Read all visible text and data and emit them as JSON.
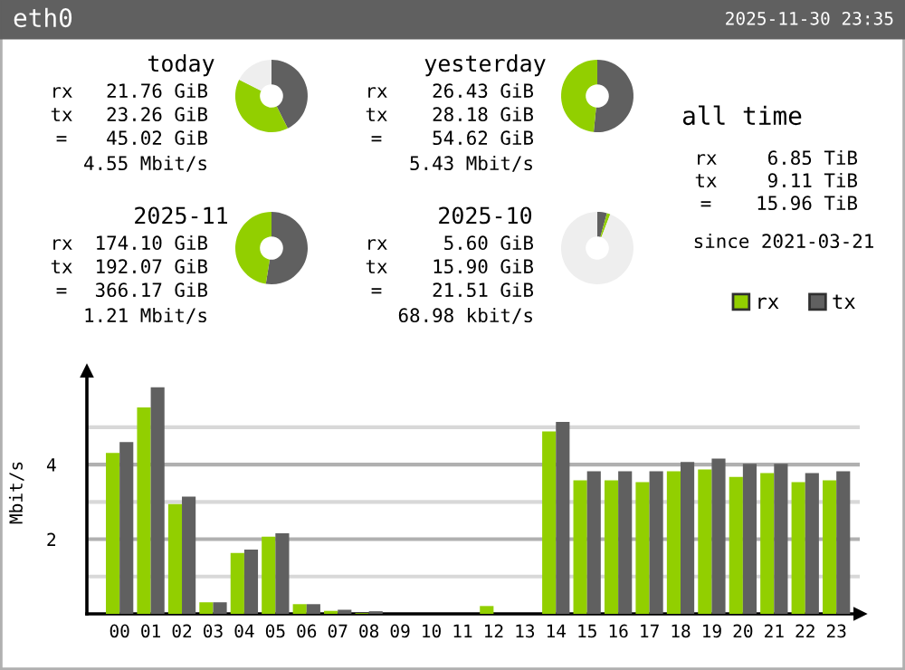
{
  "chart_data": [
    {
      "type": "donut",
      "title": "today",
      "categories": [
        null,
        null,
        null
      ],
      "values": [
        42.6,
        39.8,
        17.6
      ],
      "colors": [
        "#606060",
        "#92cf00",
        "#eeeeee"
      ],
      "annotations": [
        "rx",
        "21.76 GiB",
        "tx",
        "23.26 GiB",
        "=",
        "45.02 GiB",
        "4.55 Mbit/s"
      ]
    },
    {
      "type": "donut",
      "title": "yesterday",
      "categories": [
        null,
        null
      ],
      "values": [
        51.6,
        48.4
      ],
      "colors": [
        "#606060",
        "#92cf00"
      ],
      "annotations": [
        "rx",
        "26.43 GiB",
        "tx",
        "28.18 GiB",
        "=",
        "54.62 GiB",
        "5.43 Mbit/s"
      ]
    },
    {
      "type": "donut",
      "title": "2025-11",
      "categories": [
        null,
        null
      ],
      "values": [
        52.5,
        47.5
      ],
      "colors": [
        "#606060",
        "#92cf00"
      ],
      "annotations": [
        "rx",
        "174.10 GiB",
        "tx",
        "192.07 GiB",
        "=",
        "366.17 GiB",
        "1.21 Mbit/s"
      ]
    },
    {
      "type": "donut",
      "title": "2025-10",
      "categories": [
        null,
        null,
        null
      ],
      "values": [
        4.3,
        1.5,
        94.2
      ],
      "colors": [
        "#606060",
        "#92cf00",
        "#eeeeee"
      ],
      "annotations": [
        "rx",
        "5.60 GiB",
        "tx",
        "15.90 GiB",
        "=",
        "21.51 GiB",
        "68.98 kbit/s"
      ]
    },
    {
      "type": "other",
      "title": "all time",
      "annotations": [
        "rx",
        "6.85 TiB",
        "tx",
        "9.11 TiB",
        "=",
        "15.96 TiB",
        "since 2021-03-21"
      ]
    },
    {
      "type": "bar",
      "title": "eth0",
      "subtitle": "2025-11-30 23:35",
      "ylabel": "Mbit/s",
      "categories": [
        "00",
        "01",
        "02",
        "03",
        "04",
        "05",
        "06",
        "07",
        "08",
        "09",
        "10",
        "11",
        "12",
        "13",
        "14",
        "15",
        "16",
        "17",
        "18",
        "19",
        "20",
        "21",
        "22",
        "23"
      ],
      "series": [
        {
          "name": "rx",
          "color": "#92cf00",
          "values": [
            4.31,
            5.53,
            2.94,
            0.31,
            1.63,
            2.07,
            0.26,
            0.08,
            0.02,
            0,
            0,
            0,
            0.21,
            0,
            4.89,
            3.58,
            3.58,
            3.53,
            3.82,
            3.87,
            3.67,
            3.77,
            3.53,
            3.58
          ]
        },
        {
          "name": "tx",
          "color": "#606060",
          "values": [
            4.6,
            6.07,
            3.14,
            0.31,
            1.72,
            2.16,
            0.26,
            0.11,
            0.07,
            0,
            0,
            0,
            0,
            0,
            5.14,
            3.82,
            3.82,
            3.82,
            4.07,
            4.16,
            4.02,
            4.02,
            3.77,
            3.82
          ]
        }
      ],
      "ylim": [
        0,
        6.5
      ],
      "yticks": [
        {
          "value": 1,
          "label": null
        },
        2,
        {
          "value": 3,
          "label": null
        },
        4,
        {
          "value": 5,
          "label": null
        }
      ],
      "grid": "y",
      "legend": "top right"
    }
  ]
}
